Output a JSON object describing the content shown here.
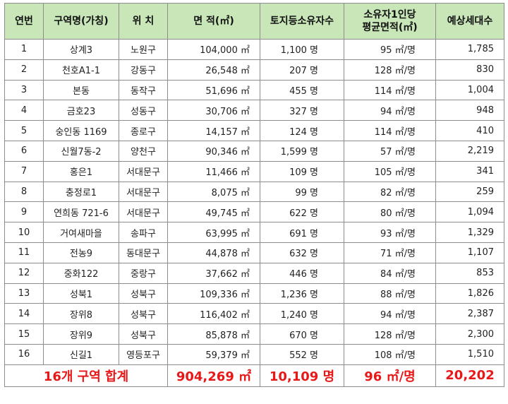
{
  "headers": {
    "no": "연번",
    "zone": "구역명(가칭)",
    "loc": "위 치",
    "area": "면 적(㎡)",
    "owners": "토지등소유자수",
    "per_owner": "소유자1인당\n평균면적(㎡)",
    "households": "예상세대수"
  },
  "rows": [
    {
      "no": "1",
      "zone": "상계3",
      "loc": "노원구",
      "area": "104,000 ㎡",
      "owners": "1,100 명",
      "per": "95 ㎡/명",
      "hh": "1,785"
    },
    {
      "no": "2",
      "zone": "천호A1-1",
      "loc": "강동구",
      "area": "26,548 ㎡",
      "owners": "207 명",
      "per": "128 ㎡/명",
      "hh": "830"
    },
    {
      "no": "3",
      "zone": "본동",
      "loc": "동작구",
      "area": "51,696 ㎡",
      "owners": "455 명",
      "per": "114 ㎡/명",
      "hh": "1,004"
    },
    {
      "no": "4",
      "zone": "금호23",
      "loc": "성동구",
      "area": "30,706 ㎡",
      "owners": "327 명",
      "per": "94 ㎡/명",
      "hh": "948"
    },
    {
      "no": "5",
      "zone": "숭인동 1169",
      "loc": "종로구",
      "area": "14,157 ㎡",
      "owners": "124 명",
      "per": "114 ㎡/명",
      "hh": "410"
    },
    {
      "no": "6",
      "zone": "신월7동-2",
      "loc": "양천구",
      "area": "90,346 ㎡",
      "owners": "1,599 명",
      "per": "57 ㎡/명",
      "hh": "2,219"
    },
    {
      "no": "7",
      "zone": "홍은1",
      "loc": "서대문구",
      "area": "11,466 ㎡",
      "owners": "109 명",
      "per": "105 ㎡/명",
      "hh": "341"
    },
    {
      "no": "8",
      "zone": "충정로1",
      "loc": "서대문구",
      "area": "8,075 ㎡",
      "owners": "99 명",
      "per": "82 ㎡/명",
      "hh": "259"
    },
    {
      "no": "9",
      "zone": "연희동 721-6",
      "loc": "서대문구",
      "area": "49,745 ㎡",
      "owners": "622 명",
      "per": "80 ㎡/명",
      "hh": "1,094"
    },
    {
      "no": "10",
      "zone": "거여새마을",
      "loc": "송파구",
      "area": "63,995 ㎡",
      "owners": "691 명",
      "per": "93 ㎡/명",
      "hh": "1,329"
    },
    {
      "no": "11",
      "zone": "전농9",
      "loc": "동대문구",
      "area": "44,878 ㎡",
      "owners": "632 명",
      "per": "71 ㎡/명",
      "hh": "1,107"
    },
    {
      "no": "12",
      "zone": "중화122",
      "loc": "중랑구",
      "area": "37,662 ㎡",
      "owners": "446 명",
      "per": "84 ㎡/명",
      "hh": "853"
    },
    {
      "no": "13",
      "zone": "성북1",
      "loc": "성북구",
      "area": "109,336 ㎡",
      "owners": "1,236 명",
      "per": "88 ㎡/명",
      "hh": "1,826"
    },
    {
      "no": "14",
      "zone": "장위8",
      "loc": "성북구",
      "area": "116,402 ㎡",
      "owners": "1,240 명",
      "per": "94 ㎡/명",
      "hh": "2,387"
    },
    {
      "no": "15",
      "zone": "장위9",
      "loc": "성북구",
      "area": "85,878 ㎡",
      "owners": "670 명",
      "per": "128 ㎡/명",
      "hh": "2,300"
    },
    {
      "no": "16",
      "zone": "신길1",
      "loc": "영등포구",
      "area": "59,379 ㎡",
      "owners": "552 명",
      "per": "108 ㎡/명",
      "hh": "1,510"
    }
  ],
  "total": {
    "label": "16개 구역 합계",
    "area": "904,269 ㎡",
    "owners": "10,109 명",
    "per": "96 ㎡/명",
    "hh": "20,202"
  },
  "colors": {
    "header_bg": "#c8e6b8",
    "total_text": "#e81818"
  }
}
